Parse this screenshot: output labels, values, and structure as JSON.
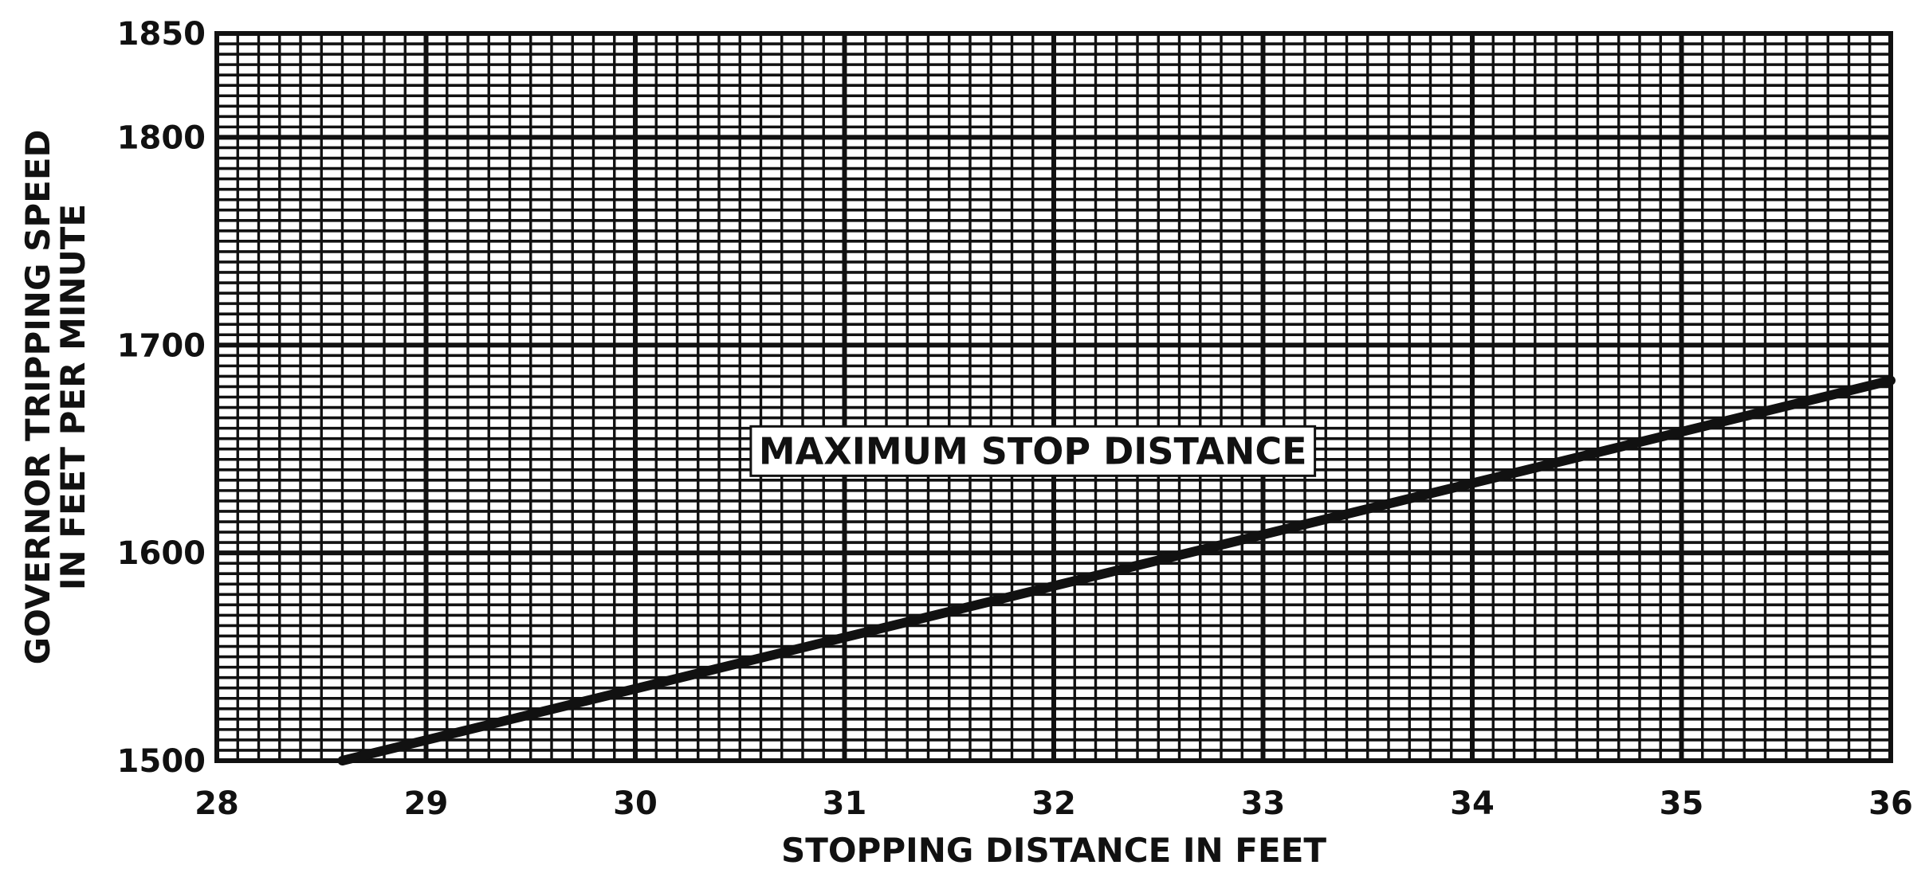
{
  "chart_data": {
    "type": "line",
    "xlabel": "STOPPING DISTANCE IN FEET",
    "ylabel_line1": "GOVERNOR TRIPPING SPEED",
    "ylabel_line2": "IN FEET PER MINUTE",
    "xlim": [
      28,
      36
    ],
    "ylim": [
      1500,
      1850
    ],
    "x_ticks": [
      28,
      29,
      30,
      31,
      32,
      33,
      34,
      35,
      36
    ],
    "x_tick_labels": [
      "28",
      "29",
      "30",
      "31",
      "32",
      "33",
      "34",
      "35",
      "36"
    ],
    "y_ticks": [
      1500,
      1600,
      1700,
      1800,
      1850
    ],
    "y_tick_labels": [
      "1500",
      "1600",
      "1700",
      "1800",
      "1850"
    ],
    "grid": true,
    "series": [
      {
        "x": [
          28.6,
          36.0
        ],
        "y": [
          1500,
          1683
        ]
      }
    ],
    "annotation": {
      "text": "MAXIMUM STOP DISTANCE",
      "x": 31.9,
      "y": 1649
    },
    "colors": {
      "ink": "#111111",
      "paper": "#ffffff"
    }
  }
}
